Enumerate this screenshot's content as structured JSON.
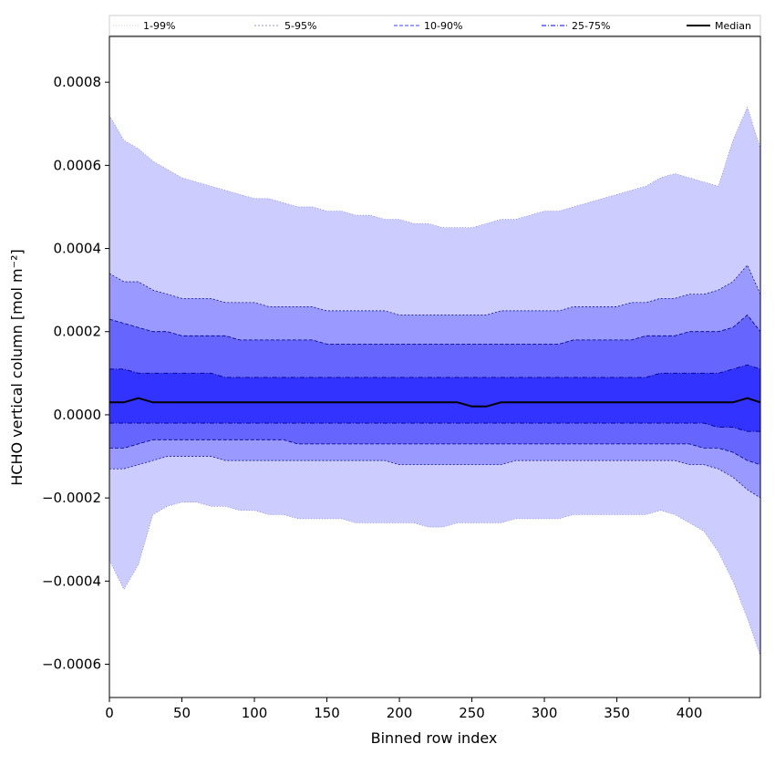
{
  "chart_data": {
    "type": "area",
    "title": "",
    "xlabel": "Binned row index",
    "ylabel": "HCHO vertical column [mol m⁻²]",
    "xlim": [
      0,
      449
    ],
    "ylim": [
      -0.00068,
      0.00091
    ],
    "x_ticks": [
      0,
      50,
      100,
      150,
      200,
      250,
      300,
      350,
      400
    ],
    "x_tick_labels": [
      "0",
      "50",
      "100",
      "150",
      "200",
      "250",
      "300",
      "350",
      "400"
    ],
    "y_ticks": [
      -0.0006,
      -0.0004,
      -0.0002,
      0.0,
      0.0002,
      0.0004,
      0.0006,
      0.0008
    ],
    "y_tick_labels": [
      "−0.0006",
      "−0.0004",
      "−0.0002",
      "0.0000",
      "0.0002",
      "0.0004",
      "0.0006",
      "0.0008"
    ],
    "grid": false,
    "legend_position": "top (above plot, single row)",
    "legend": [
      {
        "label": "1-99%",
        "color": "#ccccff",
        "style": "dotted-thin"
      },
      {
        "label": "5-95%",
        "color": "#9999ff",
        "style": "dotted"
      },
      {
        "label": "10-90%",
        "color": "#6666ff",
        "style": "dashed"
      },
      {
        "label": "25-75%",
        "color": "#3333ff",
        "style": "dash-dot"
      },
      {
        "label": "Median",
        "color": "#000000",
        "style": "solid"
      }
    ],
    "x": [
      0,
      10,
      20,
      30,
      40,
      50,
      60,
      70,
      80,
      90,
      100,
      110,
      120,
      130,
      140,
      150,
      160,
      170,
      180,
      190,
      200,
      210,
      220,
      230,
      240,
      250,
      260,
      270,
      280,
      290,
      300,
      310,
      320,
      330,
      340,
      350,
      360,
      370,
      380,
      390,
      400,
      410,
      420,
      430,
      440,
      449
    ],
    "series": [
      {
        "name": "1-99%",
        "color": "#ccccff",
        "upper": [
          0.00072,
          0.00066,
          0.00064,
          0.00061,
          0.00059,
          0.00057,
          0.00056,
          0.00055,
          0.00054,
          0.00053,
          0.00052,
          0.00052,
          0.00051,
          0.0005,
          0.0005,
          0.00049,
          0.00049,
          0.00048,
          0.00048,
          0.00047,
          0.00047,
          0.00046,
          0.00046,
          0.00045,
          0.00045,
          0.00045,
          0.00046,
          0.00047,
          0.00047,
          0.00048,
          0.00049,
          0.00049,
          0.0005,
          0.00051,
          0.00052,
          0.00053,
          0.00054,
          0.00055,
          0.00057,
          0.00058,
          0.00057,
          0.00056,
          0.00055,
          0.00066,
          0.00074,
          0.00064
        ],
        "lower": [
          -0.00035,
          -0.00042,
          -0.00036,
          -0.00024,
          -0.00022,
          -0.00021,
          -0.00021,
          -0.00022,
          -0.00022,
          -0.00023,
          -0.00023,
          -0.00024,
          -0.00024,
          -0.00025,
          -0.00025,
          -0.00025,
          -0.00025,
          -0.00026,
          -0.00026,
          -0.00026,
          -0.00026,
          -0.00026,
          -0.00027,
          -0.00027,
          -0.00026,
          -0.00026,
          -0.00026,
          -0.00026,
          -0.00025,
          -0.00025,
          -0.00025,
          -0.00025,
          -0.00024,
          -0.00024,
          -0.00024,
          -0.00024,
          -0.00024,
          -0.00024,
          -0.00023,
          -0.00024,
          -0.00026,
          -0.00028,
          -0.00033,
          -0.0004,
          -0.00049,
          -0.00058
        ]
      },
      {
        "name": "5-95%",
        "color": "#9999ff",
        "upper": [
          0.00034,
          0.00032,
          0.00032,
          0.0003,
          0.00029,
          0.00028,
          0.00028,
          0.00028,
          0.00027,
          0.00027,
          0.00027,
          0.00026,
          0.00026,
          0.00026,
          0.00026,
          0.00025,
          0.00025,
          0.00025,
          0.00025,
          0.00025,
          0.00024,
          0.00024,
          0.00024,
          0.00024,
          0.00024,
          0.00024,
          0.00024,
          0.00025,
          0.00025,
          0.00025,
          0.00025,
          0.00025,
          0.00026,
          0.00026,
          0.00026,
          0.00026,
          0.00027,
          0.00027,
          0.00028,
          0.00028,
          0.00029,
          0.00029,
          0.0003,
          0.00032,
          0.00036,
          0.00029
        ],
        "lower": [
          -0.00013,
          -0.00013,
          -0.00012,
          -0.00011,
          -0.0001,
          -0.0001,
          -0.0001,
          -0.0001,
          -0.00011,
          -0.00011,
          -0.00011,
          -0.00011,
          -0.00011,
          -0.00011,
          -0.00011,
          -0.00011,
          -0.00011,
          -0.00011,
          -0.00011,
          -0.00011,
          -0.00012,
          -0.00012,
          -0.00012,
          -0.00012,
          -0.00012,
          -0.00012,
          -0.00012,
          -0.00012,
          -0.00011,
          -0.00011,
          -0.00011,
          -0.00011,
          -0.00011,
          -0.00011,
          -0.00011,
          -0.00011,
          -0.00011,
          -0.00011,
          -0.00011,
          -0.00011,
          -0.00012,
          -0.00012,
          -0.00013,
          -0.00015,
          -0.00018,
          -0.0002
        ]
      },
      {
        "name": "10-90%",
        "color": "#6666ff",
        "upper": [
          0.00023,
          0.00022,
          0.00021,
          0.0002,
          0.0002,
          0.00019,
          0.00019,
          0.00019,
          0.00019,
          0.00018,
          0.00018,
          0.00018,
          0.00018,
          0.00018,
          0.00018,
          0.00017,
          0.00017,
          0.00017,
          0.00017,
          0.00017,
          0.00017,
          0.00017,
          0.00017,
          0.00017,
          0.00017,
          0.00017,
          0.00017,
          0.00017,
          0.00017,
          0.00017,
          0.00017,
          0.00017,
          0.00018,
          0.00018,
          0.00018,
          0.00018,
          0.00018,
          0.00019,
          0.00019,
          0.00019,
          0.0002,
          0.0002,
          0.0002,
          0.00021,
          0.00024,
          0.0002
        ],
        "lower": [
          -8e-05,
          -8e-05,
          -7e-05,
          -6e-05,
          -6e-05,
          -6e-05,
          -6e-05,
          -6e-05,
          -6e-05,
          -6e-05,
          -6e-05,
          -6e-05,
          -6e-05,
          -7e-05,
          -7e-05,
          -7e-05,
          -7e-05,
          -7e-05,
          -7e-05,
          -7e-05,
          -7e-05,
          -7e-05,
          -7e-05,
          -7e-05,
          -7e-05,
          -7e-05,
          -7e-05,
          -7e-05,
          -7e-05,
          -7e-05,
          -7e-05,
          -7e-05,
          -7e-05,
          -7e-05,
          -7e-05,
          -7e-05,
          -7e-05,
          -7e-05,
          -7e-05,
          -7e-05,
          -7e-05,
          -8e-05,
          -8e-05,
          -9e-05,
          -0.00011,
          -0.00012
        ]
      },
      {
        "name": "25-75%",
        "color": "#3333ff",
        "upper": [
          0.00011,
          0.00011,
          0.0001,
          0.0001,
          0.0001,
          0.0001,
          0.0001,
          0.0001,
          9e-05,
          9e-05,
          9e-05,
          9e-05,
          9e-05,
          9e-05,
          9e-05,
          9e-05,
          9e-05,
          9e-05,
          9e-05,
          9e-05,
          9e-05,
          9e-05,
          9e-05,
          9e-05,
          9e-05,
          9e-05,
          9e-05,
          9e-05,
          9e-05,
          9e-05,
          9e-05,
          9e-05,
          9e-05,
          9e-05,
          9e-05,
          9e-05,
          9e-05,
          9e-05,
          0.0001,
          0.0001,
          0.0001,
          0.0001,
          0.0001,
          0.00011,
          0.00012,
          0.00011
        ],
        "lower": [
          -2e-05,
          -2e-05,
          -2e-05,
          -2e-05,
          -2e-05,
          -2e-05,
          -2e-05,
          -2e-05,
          -2e-05,
          -2e-05,
          -2e-05,
          -2e-05,
          -2e-05,
          -2e-05,
          -2e-05,
          -2e-05,
          -2e-05,
          -2e-05,
          -2e-05,
          -2e-05,
          -2e-05,
          -2e-05,
          -2e-05,
          -2e-05,
          -2e-05,
          -2e-05,
          -2e-05,
          -2e-05,
          -2e-05,
          -2e-05,
          -2e-05,
          -2e-05,
          -2e-05,
          -2e-05,
          -2e-05,
          -2e-05,
          -2e-05,
          -2e-05,
          -2e-05,
          -2e-05,
          -2e-05,
          -2e-05,
          -3e-05,
          -3e-05,
          -4e-05,
          -4e-05
        ]
      },
      {
        "name": "Median",
        "color": "#000000",
        "values": [
          3e-05,
          3e-05,
          4e-05,
          3e-05,
          3e-05,
          3e-05,
          3e-05,
          3e-05,
          3e-05,
          3e-05,
          3e-05,
          3e-05,
          3e-05,
          3e-05,
          3e-05,
          3e-05,
          3e-05,
          3e-05,
          3e-05,
          3e-05,
          3e-05,
          3e-05,
          3e-05,
          3e-05,
          3e-05,
          2e-05,
          2e-05,
          3e-05,
          3e-05,
          3e-05,
          3e-05,
          3e-05,
          3e-05,
          3e-05,
          3e-05,
          3e-05,
          3e-05,
          3e-05,
          3e-05,
          3e-05,
          3e-05,
          3e-05,
          3e-05,
          3e-05,
          4e-05,
          3e-05
        ]
      }
    ]
  }
}
